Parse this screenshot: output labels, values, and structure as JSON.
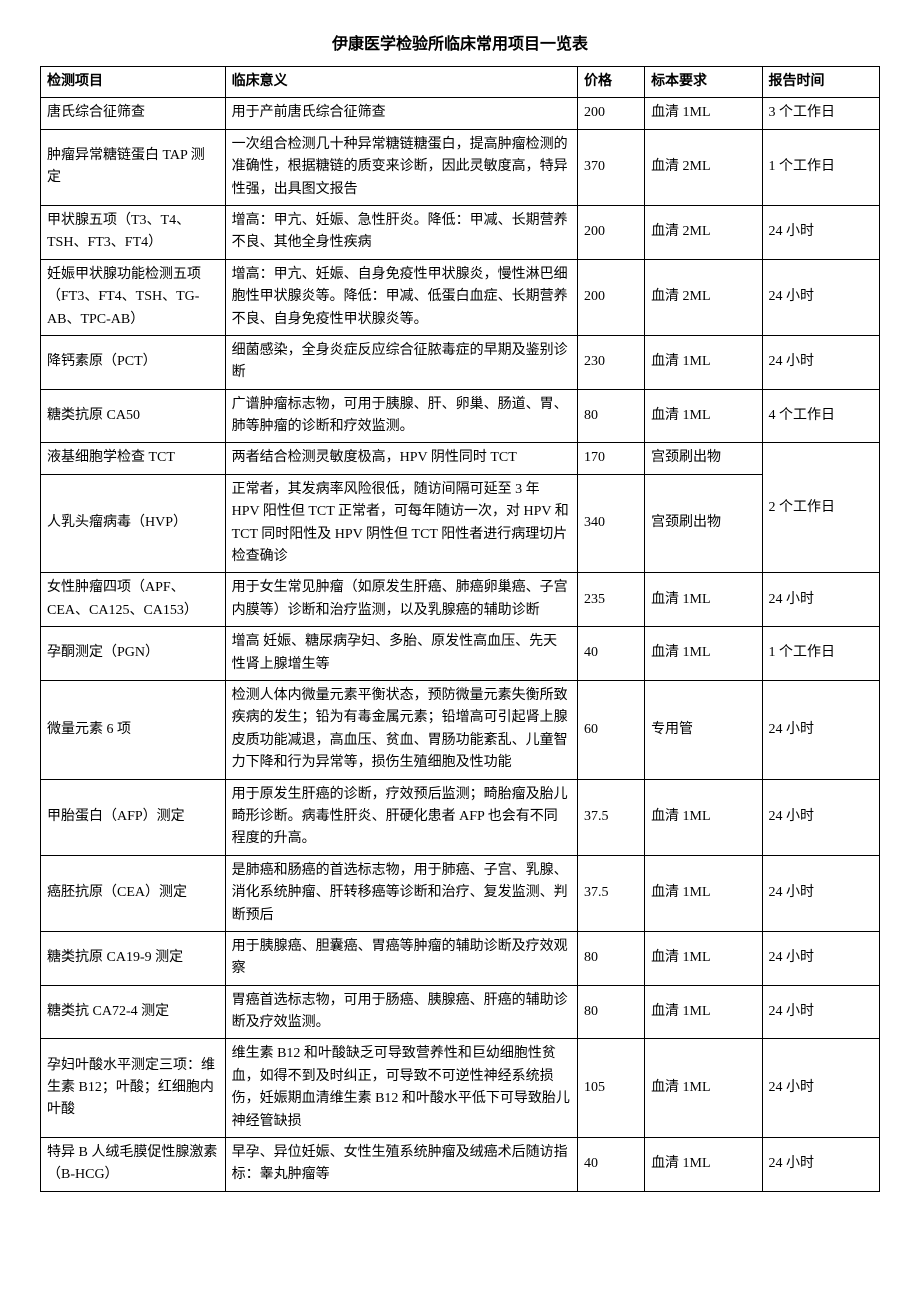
{
  "title": "伊康医学检验所临床常用项目一览表",
  "headers": [
    "检测项目",
    "临床意义",
    "价格",
    "标本要求",
    "报告时间"
  ],
  "rows": [
    {
      "item": "唐氏综合征筛查",
      "meaning": "用于产前唐氏综合征筛查",
      "price": "200",
      "sample": "血清 1ML",
      "time": "3 个工作日"
    },
    {
      "item": "肿瘤异常糖链蛋白 TAP 测定",
      "meaning": "一次组合检测几十种异常糖链糖蛋白，提高肿瘤检测的准确性，根据糖链的质变来诊断，因此灵敏度高，特异性强，出具图文报告",
      "price": "370",
      "sample": "血清 2ML",
      "time": "1 个工作日"
    },
    {
      "item": "甲状腺五项（T3、T4、TSH、FT3、FT4）",
      "meaning": "增高：甲亢、妊娠、急性肝炎。降低：甲减、长期营养不良、其他全身性疾病",
      "price": "200",
      "sample": "血清 2ML",
      "time": "24 小时"
    },
    {
      "item": "妊娠甲状腺功能检测五项（FT3、FT4、TSH、TG-AB、TPC-AB）",
      "meaning": "增高：甲亢、妊娠、自身免疫性甲状腺炎，慢性淋巴细胞性甲状腺炎等。降低：甲减、低蛋白血症、长期营养不良、自身免疫性甲状腺炎等。",
      "price": "200",
      "sample": "血清 2ML",
      "time": "24 小时"
    },
    {
      "item": "降钙素原（PCT）",
      "meaning": "细菌感染，全身炎症反应综合征脓毒症的早期及鉴别诊断",
      "price": "230",
      "sample": "血清 1ML",
      "time": "24 小时"
    },
    {
      "item": "糖类抗原 CA50",
      "meaning": "广谱肿瘤标志物，可用于胰腺、肝、卵巢、肠道、胃、肺等肿瘤的诊断和疗效监测。",
      "price": "80",
      "sample": "血清 1ML",
      "time": "4 个工作日"
    },
    {
      "item": "液基细胞学检查 TCT",
      "meaning": "两者结合检测灵敏度极高，HPV 阴性同时 TCT",
      "price": "170",
      "sample": "宫颈刷出物",
      "time": "2 个工作日",
      "timeRowspan": 2
    },
    {
      "item": "人乳头瘤病毒（HVP）",
      "meaning": "正常者，其发病率风险很低，随访间隔可延至 3 年 HPV 阳性但 TCT 正常者，可每年随访一次，对 HPV 和 TCT 同时阳性及 HPV 阴性但 TCT 阳性者进行病理切片检查确诊",
      "price": "340",
      "sample": "宫颈刷出物",
      "skipTime": true
    },
    {
      "item": "女性肿瘤四项（APF、CEA、CA125、CA153）",
      "meaning": "用于女生常见肿瘤（如原发生肝癌、肺癌卵巢癌、子宫内膜等）诊断和治疗监测，以及乳腺癌的辅助诊断",
      "price": "235",
      "sample": "血清 1ML",
      "time": "24 小时"
    },
    {
      "item": "孕酮测定（PGN）",
      "meaning": "增高 妊娠、糖尿病孕妇、多胎、原发性高血压、先天性肾上腺增生等",
      "price": "40",
      "sample": "血清 1ML",
      "time": "1 个工作日"
    },
    {
      "item": "微量元素 6 项",
      "meaning": "检测人体内微量元素平衡状态，预防微量元素失衡所致疾病的发生；铅为有毒金属元素；铅增高可引起肾上腺皮质功能减退，高血压、贫血、胃肠功能紊乱、儿童智力下降和行为异常等，损伤生殖细胞及性功能",
      "price": "60",
      "sample": "专用管",
      "time": "24 小时"
    },
    {
      "item": "甲胎蛋白（AFP）测定",
      "meaning": "用于原发生肝癌的诊断，疗效预后监测；畸胎瘤及胎儿畸形诊断。病毒性肝炎、肝硬化患者 AFP 也会有不同程度的升高。",
      "price": "37.5",
      "sample": "血清 1ML",
      "time": "24 小时"
    },
    {
      "item": "癌胚抗原（CEA）测定",
      "meaning": "是肺癌和肠癌的首选标志物，用于肺癌、子宫、乳腺、消化系统肿瘤、肝转移癌等诊断和治疗、复发监测、判断预后",
      "price": "37.5",
      "sample": "血清 1ML",
      "time": "24 小时"
    },
    {
      "item": "糖类抗原 CA19-9 测定",
      "meaning": "用于胰腺癌、胆囊癌、胃癌等肿瘤的辅助诊断及疗效观察",
      "price": "80",
      "sample": "血清 1ML",
      "time": "24 小时"
    },
    {
      "item": "糖类抗 CA72-4 测定",
      "meaning": "胃癌首选标志物，可用于肠癌、胰腺癌、肝癌的辅助诊断及疗效监测。",
      "price": "80",
      "sample": "血清 1ML",
      "time": "24 小时"
    },
    {
      "item": "孕妇叶酸水平测定三项：维生素 B12；叶酸；红细胞内叶酸",
      "meaning": "维生素 B12 和叶酸缺乏可导致营养性和巨幼细胞性贫血，如得不到及时纠正，可导致不可逆性神经系统损伤，妊娠期血清维生素 B12 和叶酸水平低下可导致胎儿神经管缺损",
      "price": "105",
      "sample": "血清 1ML",
      "time": "24 小时"
    },
    {
      "item": "特异 B 人绒毛膜促性腺激素（B-HCG）",
      "meaning": "早孕、异位妊娠、女性生殖系统肿瘤及绒癌术后随访指标：睾丸肿瘤等",
      "price": "40",
      "sample": "血清 1ML",
      "time": "24 小时"
    }
  ]
}
